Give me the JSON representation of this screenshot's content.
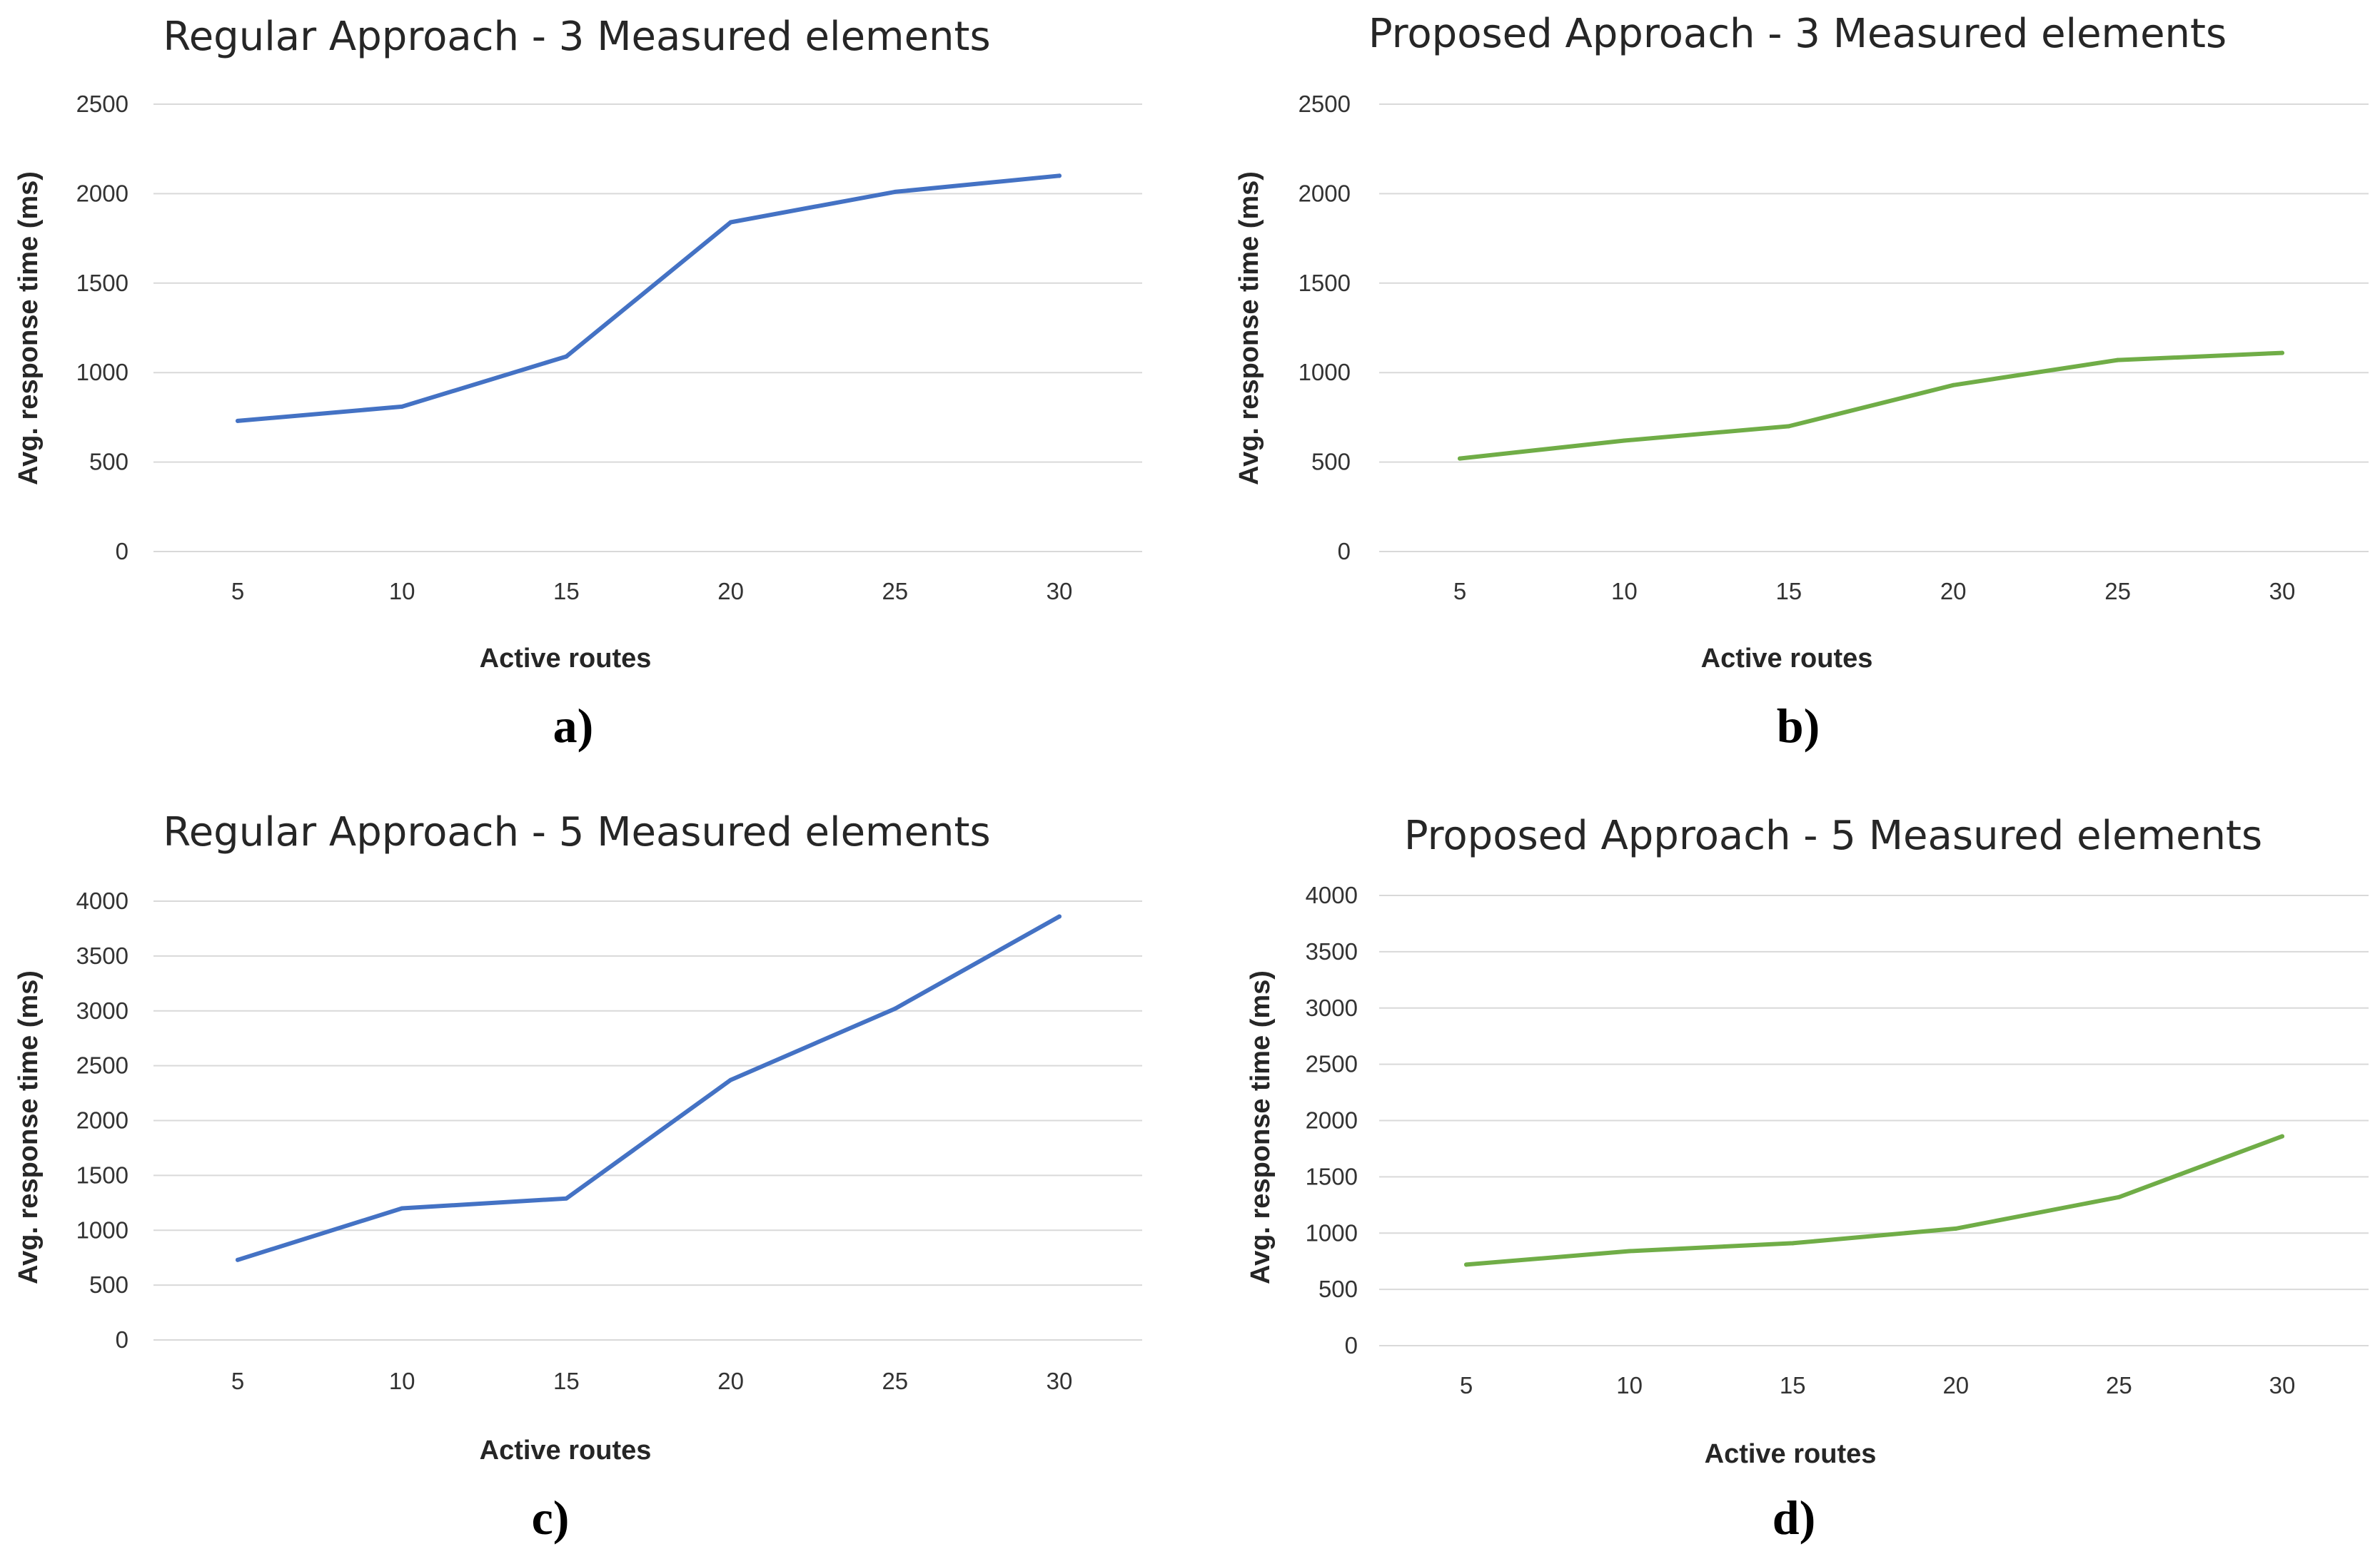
{
  "chart_data": [
    {
      "panel": "a)",
      "type": "line",
      "title": "Regular Approach - 3 Measured elements",
      "xlabel": "Active routes",
      "ylabel": "Avg. response time (ms)",
      "x": [
        5,
        10,
        15,
        20,
        25,
        30
      ],
      "xticks": [
        "5",
        "10",
        "15",
        "20",
        "25",
        "30"
      ],
      "yticks": [
        "0",
        "500",
        "1000",
        "1500",
        "2000",
        "2500"
      ],
      "ylim": [
        0,
        2500
      ],
      "grid": true,
      "color": "#4472c4",
      "series": [
        {
          "name": "Regular Approach",
          "values": [
            730,
            810,
            1090,
            1840,
            2010,
            2100
          ]
        }
      ]
    },
    {
      "panel": "b)",
      "type": "line",
      "title": "Proposed Approach - 3 Measured elements",
      "xlabel": "Active routes",
      "ylabel": "Avg. response time (ms)",
      "x": [
        5,
        10,
        15,
        20,
        25,
        30
      ],
      "xticks": [
        "5",
        "10",
        "15",
        "20",
        "25",
        "30"
      ],
      "yticks": [
        "0",
        "500",
        "1000",
        "1500",
        "2000",
        "2500"
      ],
      "ylim": [
        0,
        2500
      ],
      "grid": true,
      "color": "#70ad47",
      "series": [
        {
          "name": "Proposed Approach",
          "values": [
            520,
            620,
            700,
            930,
            1070,
            1110
          ]
        }
      ]
    },
    {
      "panel": "c)",
      "type": "line",
      "title": "Regular Approach - 5 Measured elements",
      "xlabel": "Active routes",
      "ylabel": "Avg. response time (ms)",
      "x": [
        5,
        10,
        15,
        20,
        25,
        30
      ],
      "xticks": [
        "5",
        "10",
        "15",
        "20",
        "25",
        "30"
      ],
      "yticks": [
        "0",
        "500",
        "1000",
        "1500",
        "2000",
        "2500",
        "3000",
        "3500",
        "4000"
      ],
      "ylim": [
        0,
        4000
      ],
      "grid": true,
      "color": "#4472c4",
      "series": [
        {
          "name": "Regular Approach",
          "values": [
            730,
            1200,
            1290,
            2370,
            3020,
            3860
          ]
        }
      ]
    },
    {
      "panel": "d)",
      "type": "line",
      "title": "Proposed  Approach - 5 Measured elements",
      "xlabel": "Active routes",
      "ylabel": "Avg. response time (ms)",
      "x": [
        5,
        10,
        15,
        20,
        25,
        30
      ],
      "xticks": [
        "5",
        "10",
        "15",
        "20",
        "25",
        "30"
      ],
      "yticks": [
        "0",
        "500",
        "1000",
        "1500",
        "2000",
        "2500",
        "3000",
        "3500",
        "4000"
      ],
      "ylim": [
        0,
        4000
      ],
      "grid": true,
      "color": "#70ad47",
      "series": [
        {
          "name": "Proposed Approach",
          "values": [
            720,
            840,
            910,
            1040,
            1320,
            1860
          ]
        }
      ]
    }
  ]
}
